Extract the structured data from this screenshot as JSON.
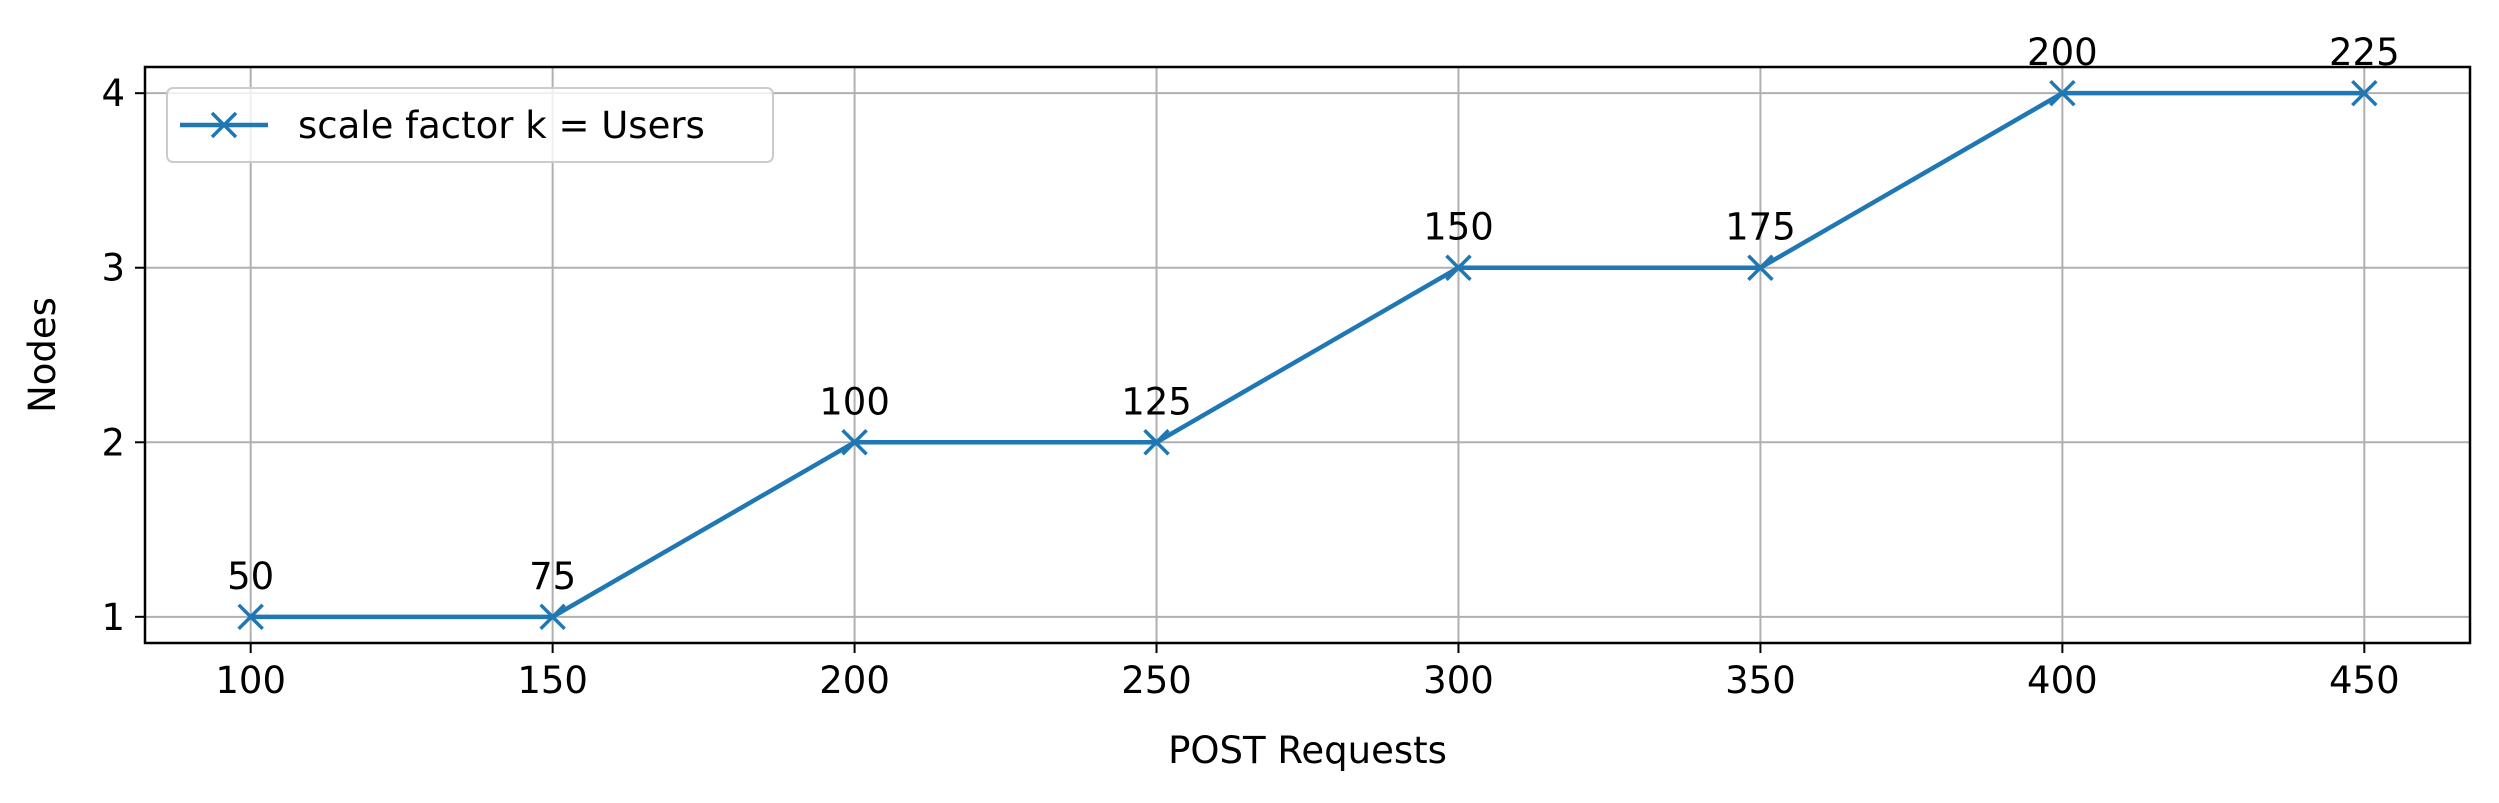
{
  "chart_data": {
    "type": "line",
    "xlabel": "POST Requests",
    "ylabel": "Nodes",
    "xlim": [
      82.5,
      467.5
    ],
    "ylim": [
      0.85,
      4.15
    ],
    "xticks": [
      100,
      150,
      200,
      250,
      300,
      350,
      400,
      450
    ],
    "yticks": [
      1,
      2,
      3,
      4
    ],
    "grid": true,
    "legend_position": "top-left",
    "series": [
      {
        "name": "scale factor k = Users",
        "color": "#1f77b4",
        "marker": "x",
        "x": [
          100,
          150,
          200,
          250,
          300,
          350,
          400,
          450
        ],
        "y": [
          1,
          1,
          2,
          2,
          3,
          3,
          4,
          4
        ],
        "point_labels": [
          "50",
          "75",
          "100",
          "125",
          "150",
          "175",
          "200",
          "225"
        ]
      }
    ]
  }
}
